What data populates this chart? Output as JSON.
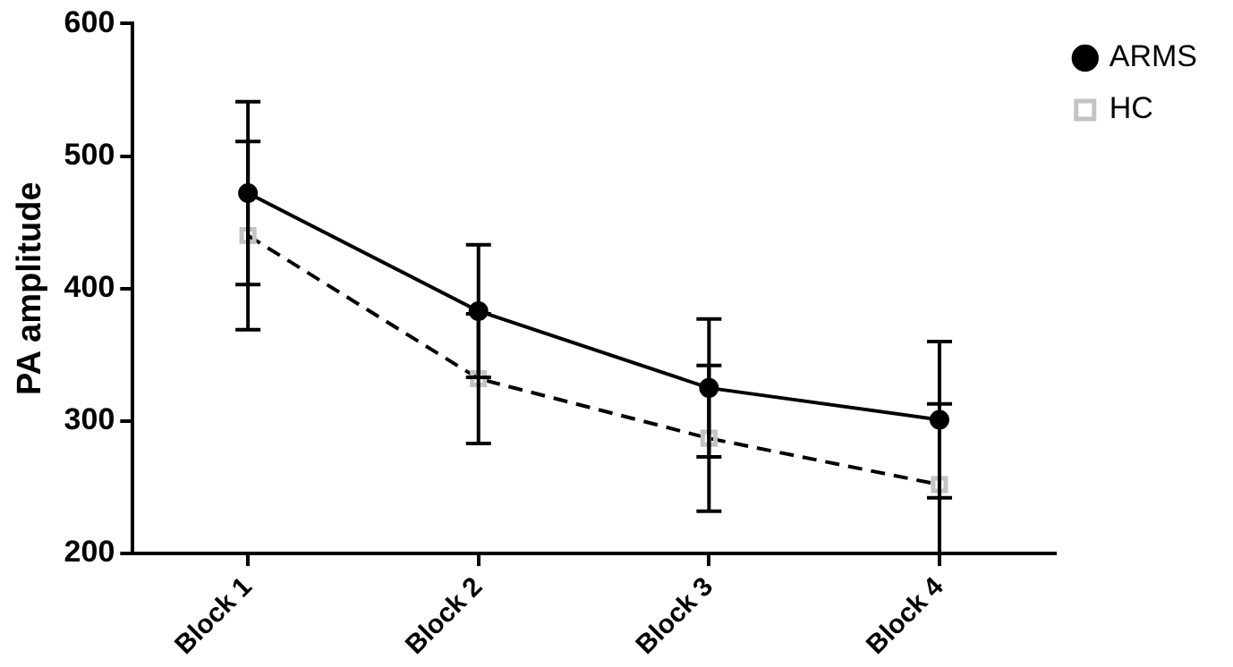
{
  "chart_data": {
    "type": "line",
    "ylabel": "PA amplitude",
    "categories": [
      "Block 1",
      "Block 2",
      "Block 3",
      "Block 4"
    ],
    "ylim": [
      200,
      600
    ],
    "yticks": [
      200,
      300,
      400,
      500,
      600
    ],
    "grid": false,
    "legend": "right",
    "series": [
      {
        "name": "ARMS",
        "color": "#000000",
        "marker": "circle",
        "line_style": "solid",
        "values": [
          472,
          383,
          325,
          301
        ],
        "errors": [
          69,
          50,
          52,
          59
        ]
      },
      {
        "name": "HC",
        "color": "#c4c4c4",
        "marker": "square",
        "line_style": "dashed",
        "values": [
          440,
          332,
          287,
          252
        ],
        "errors": [
          71,
          49,
          55,
          [
            200,
            313
          ]
        ]
      }
    ]
  }
}
